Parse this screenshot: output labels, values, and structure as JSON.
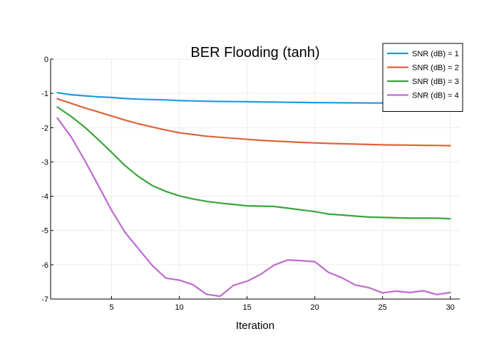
{
  "chart_data": {
    "type": "line",
    "title": "BER Flooding (tanh)",
    "xlabel": "Iteration",
    "ylabel": "",
    "xlim": [
      0.5,
      30.7
    ],
    "ylim": [
      -7,
      0
    ],
    "xticks": [
      5,
      10,
      15,
      20,
      25,
      30
    ],
    "yticks": [
      0,
      -1,
      -2,
      -3,
      -4,
      -5,
      -6,
      -7
    ],
    "grid": true,
    "legend_position": "top-right",
    "x": [
      1,
      2,
      3,
      4,
      5,
      6,
      7,
      8,
      9,
      10,
      11,
      12,
      13,
      14,
      15,
      16,
      17,
      18,
      19,
      20,
      21,
      22,
      23,
      24,
      25,
      26,
      27,
      28,
      29,
      30
    ],
    "series": [
      {
        "name": "SNR (dB) = 1",
        "color": "#1E9BE0",
        "values": [
          -0.98,
          -1.04,
          -1.07,
          -1.1,
          -1.12,
          -1.15,
          -1.17,
          -1.18,
          -1.19,
          -1.21,
          -1.22,
          -1.23,
          -1.235,
          -1.24,
          -1.245,
          -1.25,
          -1.255,
          -1.26,
          -1.265,
          -1.27,
          -1.272,
          -1.275,
          -1.278,
          -1.28,
          -1.282,
          -1.284,
          -1.286,
          -1.288,
          -1.29,
          -1.29
        ]
      },
      {
        "name": "SNR (dB) = 2",
        "color": "#E0623A",
        "values": [
          -1.16,
          -1.29,
          -1.42,
          -1.54,
          -1.66,
          -1.78,
          -1.89,
          -1.98,
          -2.07,
          -2.15,
          -2.2,
          -2.25,
          -2.28,
          -2.31,
          -2.34,
          -2.37,
          -2.39,
          -2.41,
          -2.43,
          -2.445,
          -2.46,
          -2.47,
          -2.48,
          -2.49,
          -2.5,
          -2.505,
          -2.51,
          -2.515,
          -2.52,
          -2.525
        ]
      },
      {
        "name": "SNR (dB) = 3",
        "color": "#3AA53A",
        "values": [
          -1.4,
          -1.67,
          -1.98,
          -2.34,
          -2.72,
          -3.11,
          -3.43,
          -3.69,
          -3.86,
          -3.99,
          -4.08,
          -4.15,
          -4.2,
          -4.24,
          -4.28,
          -4.29,
          -4.3,
          -4.35,
          -4.4,
          -4.45,
          -4.52,
          -4.55,
          -4.58,
          -4.61,
          -4.62,
          -4.63,
          -4.64,
          -4.64,
          -4.64,
          -4.66
        ]
      },
      {
        "name": "SNR (dB) = 4",
        "color": "#C06AD0",
        "values": [
          -1.72,
          -2.26,
          -2.94,
          -3.67,
          -4.41,
          -5.06,
          -5.54,
          -6.02,
          -6.39,
          -6.45,
          -6.58,
          -6.86,
          -6.92,
          -6.6,
          -6.48,
          -6.28,
          -6.01,
          -5.86,
          -5.88,
          -5.91,
          -6.22,
          -6.38,
          -6.59,
          -6.67,
          -6.82,
          -6.77,
          -6.81,
          -6.76,
          -6.87,
          -6.81
        ]
      }
    ]
  }
}
